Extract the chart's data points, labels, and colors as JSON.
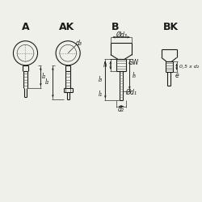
{
  "bg_color": "#f0f0eb",
  "line_color": "#1a1a1a",
  "title_A": "A",
  "title_AK": "AK",
  "title_B": "B",
  "title_BK": "BK",
  "label_d3": "d₃",
  "label_Od3": "Ød₃",
  "label_Od1": "Ød₁",
  "label_d2": "d₂",
  "label_l1": "l₁",
  "label_l2": "l₂",
  "label_l3": "l₃",
  "label_l4": "l₄",
  "label_l5": "l₅",
  "label_SW": "SW",
  "label_e": "e",
  "label_05xd2": "0,5 x d₂"
}
